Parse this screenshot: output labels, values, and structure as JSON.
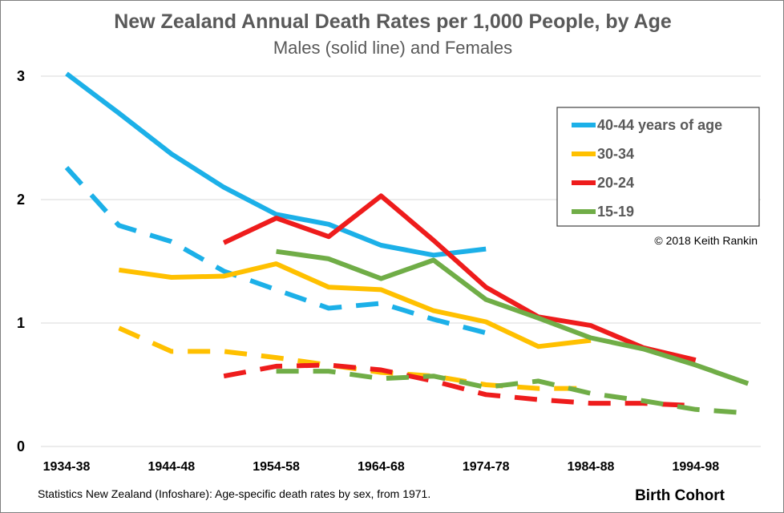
{
  "chart_data": {
    "type": "line",
    "title": "New Zealand Annual Death Rates per 1,000 People, by Age",
    "subtitle": "Males (solid line) and Females",
    "xlabel": "Birth Cohort",
    "ylabel": "",
    "ylim": [
      0,
      3
    ],
    "yticks": [
      "0",
      "1",
      "2",
      "3"
    ],
    "x_tick_labels": [
      "1934-38",
      "1944-48",
      "1954-58",
      "1964-68",
      "1974-78",
      "1984-88",
      "1994-98"
    ],
    "x_tick_positions": [
      0,
      2,
      4,
      6,
      8,
      10,
      12
    ],
    "grid": "horizontal",
    "legend_position": "top-right",
    "credit": "© 2018 Keith Rankin",
    "source": "Statistics New Zealand (Infoshare):  Age-specific death rates by sex, from 1971.",
    "series": [
      {
        "name": "40-44 years of age",
        "color": "#1cb0e8",
        "sex": "male",
        "dash": false,
        "legend": true,
        "x": [
          0,
          1,
          2,
          3,
          4,
          5,
          6,
          7,
          8
        ],
        "y": [
          3.02,
          2.7,
          2.37,
          2.1,
          1.88,
          1.8,
          1.63,
          1.55,
          1.6
        ]
      },
      {
        "name": "30-34",
        "color": "#ffc000",
        "sex": "male",
        "dash": false,
        "legend": true,
        "x": [
          1,
          2,
          3,
          4,
          5,
          6,
          7,
          8,
          9,
          10
        ],
        "y": [
          1.43,
          1.37,
          1.38,
          1.48,
          1.29,
          1.27,
          1.1,
          1.01,
          0.81,
          0.86
        ]
      },
      {
        "name": "20-24",
        "color": "#ee1c1c",
        "sex": "male",
        "dash": false,
        "legend": true,
        "x": [
          3,
          4,
          5,
          6,
          7,
          8,
          9,
          10,
          11,
          12
        ],
        "y": [
          1.65,
          1.85,
          1.7,
          2.03,
          1.67,
          1.29,
          1.05,
          0.98,
          0.8,
          0.7
        ]
      },
      {
        "name": "15-19",
        "color": "#70ad47",
        "sex": "male",
        "dash": false,
        "legend": true,
        "x": [
          4,
          5,
          6,
          7,
          8,
          9,
          10,
          11,
          12,
          13
        ],
        "y": [
          1.58,
          1.52,
          1.36,
          1.51,
          1.19,
          1.04,
          0.88,
          0.79,
          0.66,
          0.51
        ]
      },
      {
        "color": "#1cb0e8",
        "sex": "female",
        "dash": true,
        "legend": false,
        "x": [
          0,
          1,
          2,
          3,
          4,
          5,
          6,
          7,
          8
        ],
        "y": [
          2.26,
          1.79,
          1.66,
          1.42,
          1.27,
          1.12,
          1.16,
          1.03,
          0.92
        ]
      },
      {
        "color": "#ffc000",
        "sex": "female",
        "dash": true,
        "legend": false,
        "x": [
          1,
          2,
          3,
          4,
          5,
          6,
          7,
          8,
          9,
          10
        ],
        "y": [
          0.96,
          0.77,
          0.77,
          0.72,
          0.66,
          0.6,
          0.57,
          0.5,
          0.47,
          0.47
        ]
      },
      {
        "color": "#ee1c1c",
        "sex": "female",
        "dash": true,
        "legend": false,
        "x": [
          3,
          4,
          5,
          6,
          7,
          8,
          9,
          10,
          11,
          12
        ],
        "y": [
          0.57,
          0.65,
          0.66,
          0.62,
          0.53,
          0.42,
          0.38,
          0.35,
          0.35,
          0.33
        ]
      },
      {
        "color": "#70ad47",
        "sex": "female",
        "dash": true,
        "legend": false,
        "x": [
          4,
          5,
          6,
          7,
          8,
          9,
          10,
          11,
          12,
          13
        ],
        "y": [
          0.61,
          0.61,
          0.55,
          0.57,
          0.48,
          0.53,
          0.43,
          0.37,
          0.3,
          0.27
        ]
      }
    ]
  }
}
